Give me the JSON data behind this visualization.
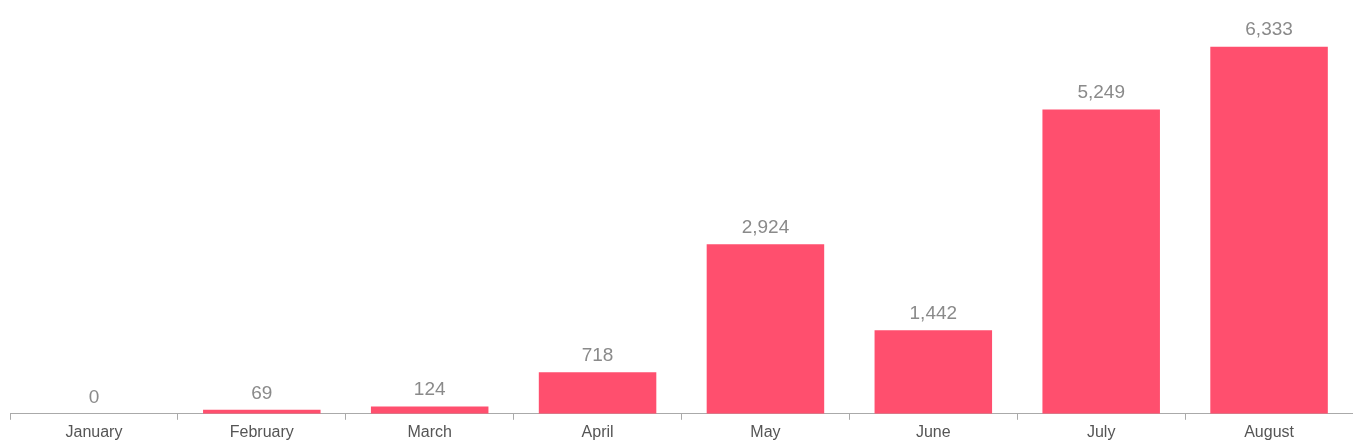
{
  "chart_data": {
    "type": "bar",
    "categories": [
      "January",
      "February",
      "March",
      "April",
      "May",
      "June",
      "July",
      "August"
    ],
    "values": [
      0,
      69,
      124,
      718,
      2924,
      1442,
      5249,
      6333
    ],
    "value_labels": [
      "0",
      "69",
      "124",
      "718",
      "2,924",
      "1,442",
      "5,249",
      "6,333"
    ],
    "color": "#ff4f6e",
    "grid": false,
    "legend": false
  }
}
